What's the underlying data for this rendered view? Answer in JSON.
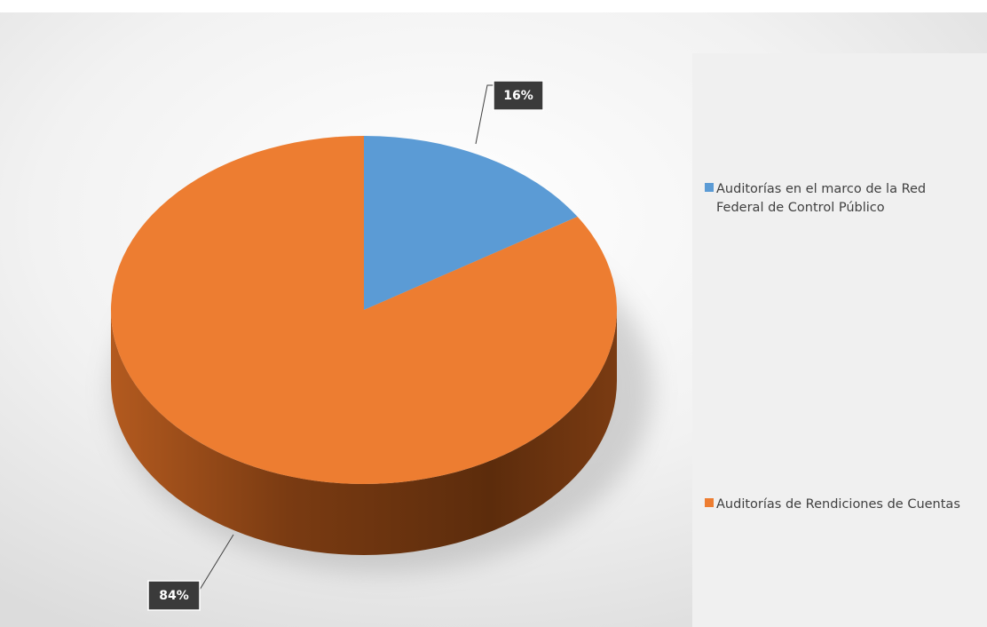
{
  "chart_data": {
    "type": "pie",
    "title": "",
    "categories": [
      "Auditorías en el marco de la Red Federal de Control Público",
      "Auditorías de Rendiciones de Cuentas"
    ],
    "values": [
      16,
      84
    ],
    "data_labels": [
      "16%",
      "84%"
    ],
    "colors": [
      "#5b9bd5",
      "#ed7d31"
    ],
    "legend": {
      "placement": "right",
      "items": [
        {
          "lines": [
            "Auditorías en el marco de la Red",
            "Federal de Control Público"
          ],
          "color": "#5b9bd5"
        },
        {
          "lines": [
            "Auditorías de Rendiciones de Cuentas"
          ],
          "color": "#ed7d31"
        }
      ]
    },
    "style": "3d"
  }
}
